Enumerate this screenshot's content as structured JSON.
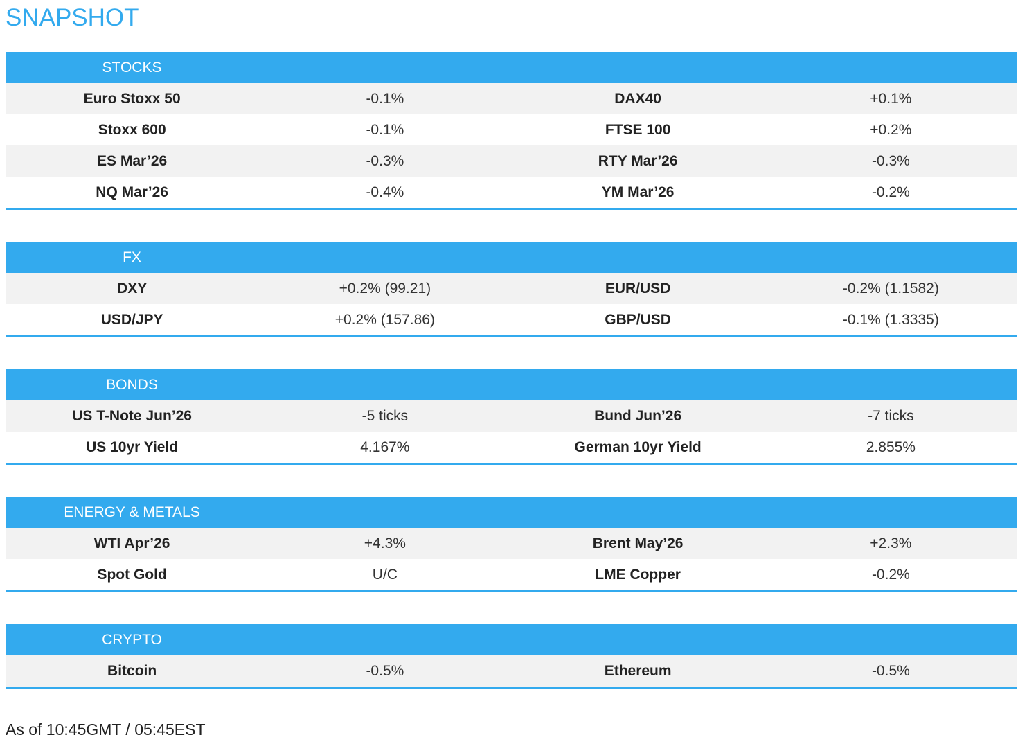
{
  "title": "SNAPSHOT",
  "sections": [
    {
      "header": "STOCKS",
      "rows": [
        [
          "Euro Stoxx 50",
          "-0.1%",
          "DAX40",
          "+0.1%"
        ],
        [
          "Stoxx 600",
          "-0.1%",
          "FTSE 100",
          "+0.2%"
        ],
        [
          "ES Mar’26",
          "-0.3%",
          "RTY Mar’26",
          "-0.3%"
        ],
        [
          "NQ Mar’26",
          "-0.4%",
          "YM Mar’26",
          "-0.2%"
        ]
      ]
    },
    {
      "header": "FX",
      "rows": [
        [
          "DXY",
          "+0.2% (99.21)",
          "EUR/USD",
          "-0.2% (1.1582)"
        ],
        [
          "USD/JPY",
          "+0.2% (157.86)",
          "GBP/USD",
          "-0.1% (1.3335)"
        ]
      ]
    },
    {
      "header": "BONDS",
      "rows": [
        [
          "US T-Note Jun’26",
          "-5 ticks",
          "Bund Jun’26",
          "-7 ticks"
        ],
        [
          "US 10yr Yield",
          "4.167%",
          "German 10yr Yield",
          "2.855%"
        ]
      ]
    },
    {
      "header": "ENERGY & METALS",
      "rows": [
        [
          "WTI Apr’26",
          "+4.3%",
          "Brent May’26",
          "+2.3%"
        ],
        [
          "Spot Gold",
          "U/C",
          "LME Copper",
          "-0.2%"
        ]
      ]
    },
    {
      "header": "CRYPTO",
      "rows": [
        [
          "Bitcoin",
          "-0.5%",
          "Ethereum",
          "-0.5%"
        ]
      ]
    }
  ],
  "footer": "As of 10:45GMT / 05:45EST"
}
